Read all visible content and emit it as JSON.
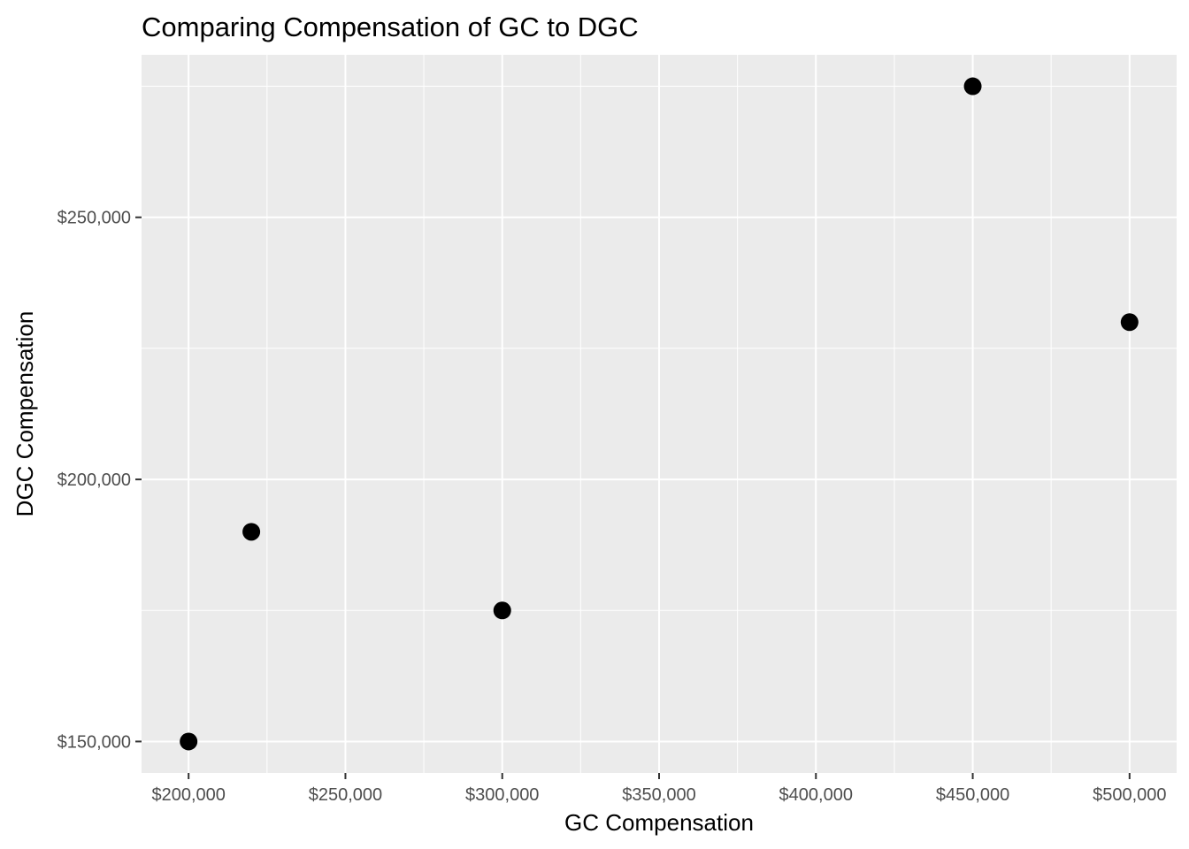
{
  "chart_data": {
    "type": "scatter",
    "title": "Comparing Compensation of GC to DGC",
    "xlabel": "GC Compensation",
    "ylabel": "DGC Compensation",
    "x": [
      200000,
      220000,
      300000,
      450000,
      500000
    ],
    "y": [
      150000,
      190000,
      175000,
      275000,
      230000
    ],
    "xlim": [
      185000,
      515000
    ],
    "ylim": [
      144000,
      281000
    ],
    "x_ticks": [
      200000,
      250000,
      300000,
      350000,
      400000,
      450000,
      500000
    ],
    "x_tick_labels": [
      "$200,000",
      "$250,000",
      "$300,000",
      "$350,000",
      "$400,000",
      "$450,000",
      "$500,000"
    ],
    "y_ticks": [
      150000,
      200000,
      250000
    ],
    "y_tick_labels": [
      "$150,000",
      "$200,000",
      "$250,000"
    ],
    "grid": true,
    "legend": "none",
    "colors": {
      "panel": "#ebebeb",
      "grid": "#ffffff",
      "point": "#000000",
      "tick_text": "#4d4d4d",
      "tick_mark": "#333333"
    }
  }
}
